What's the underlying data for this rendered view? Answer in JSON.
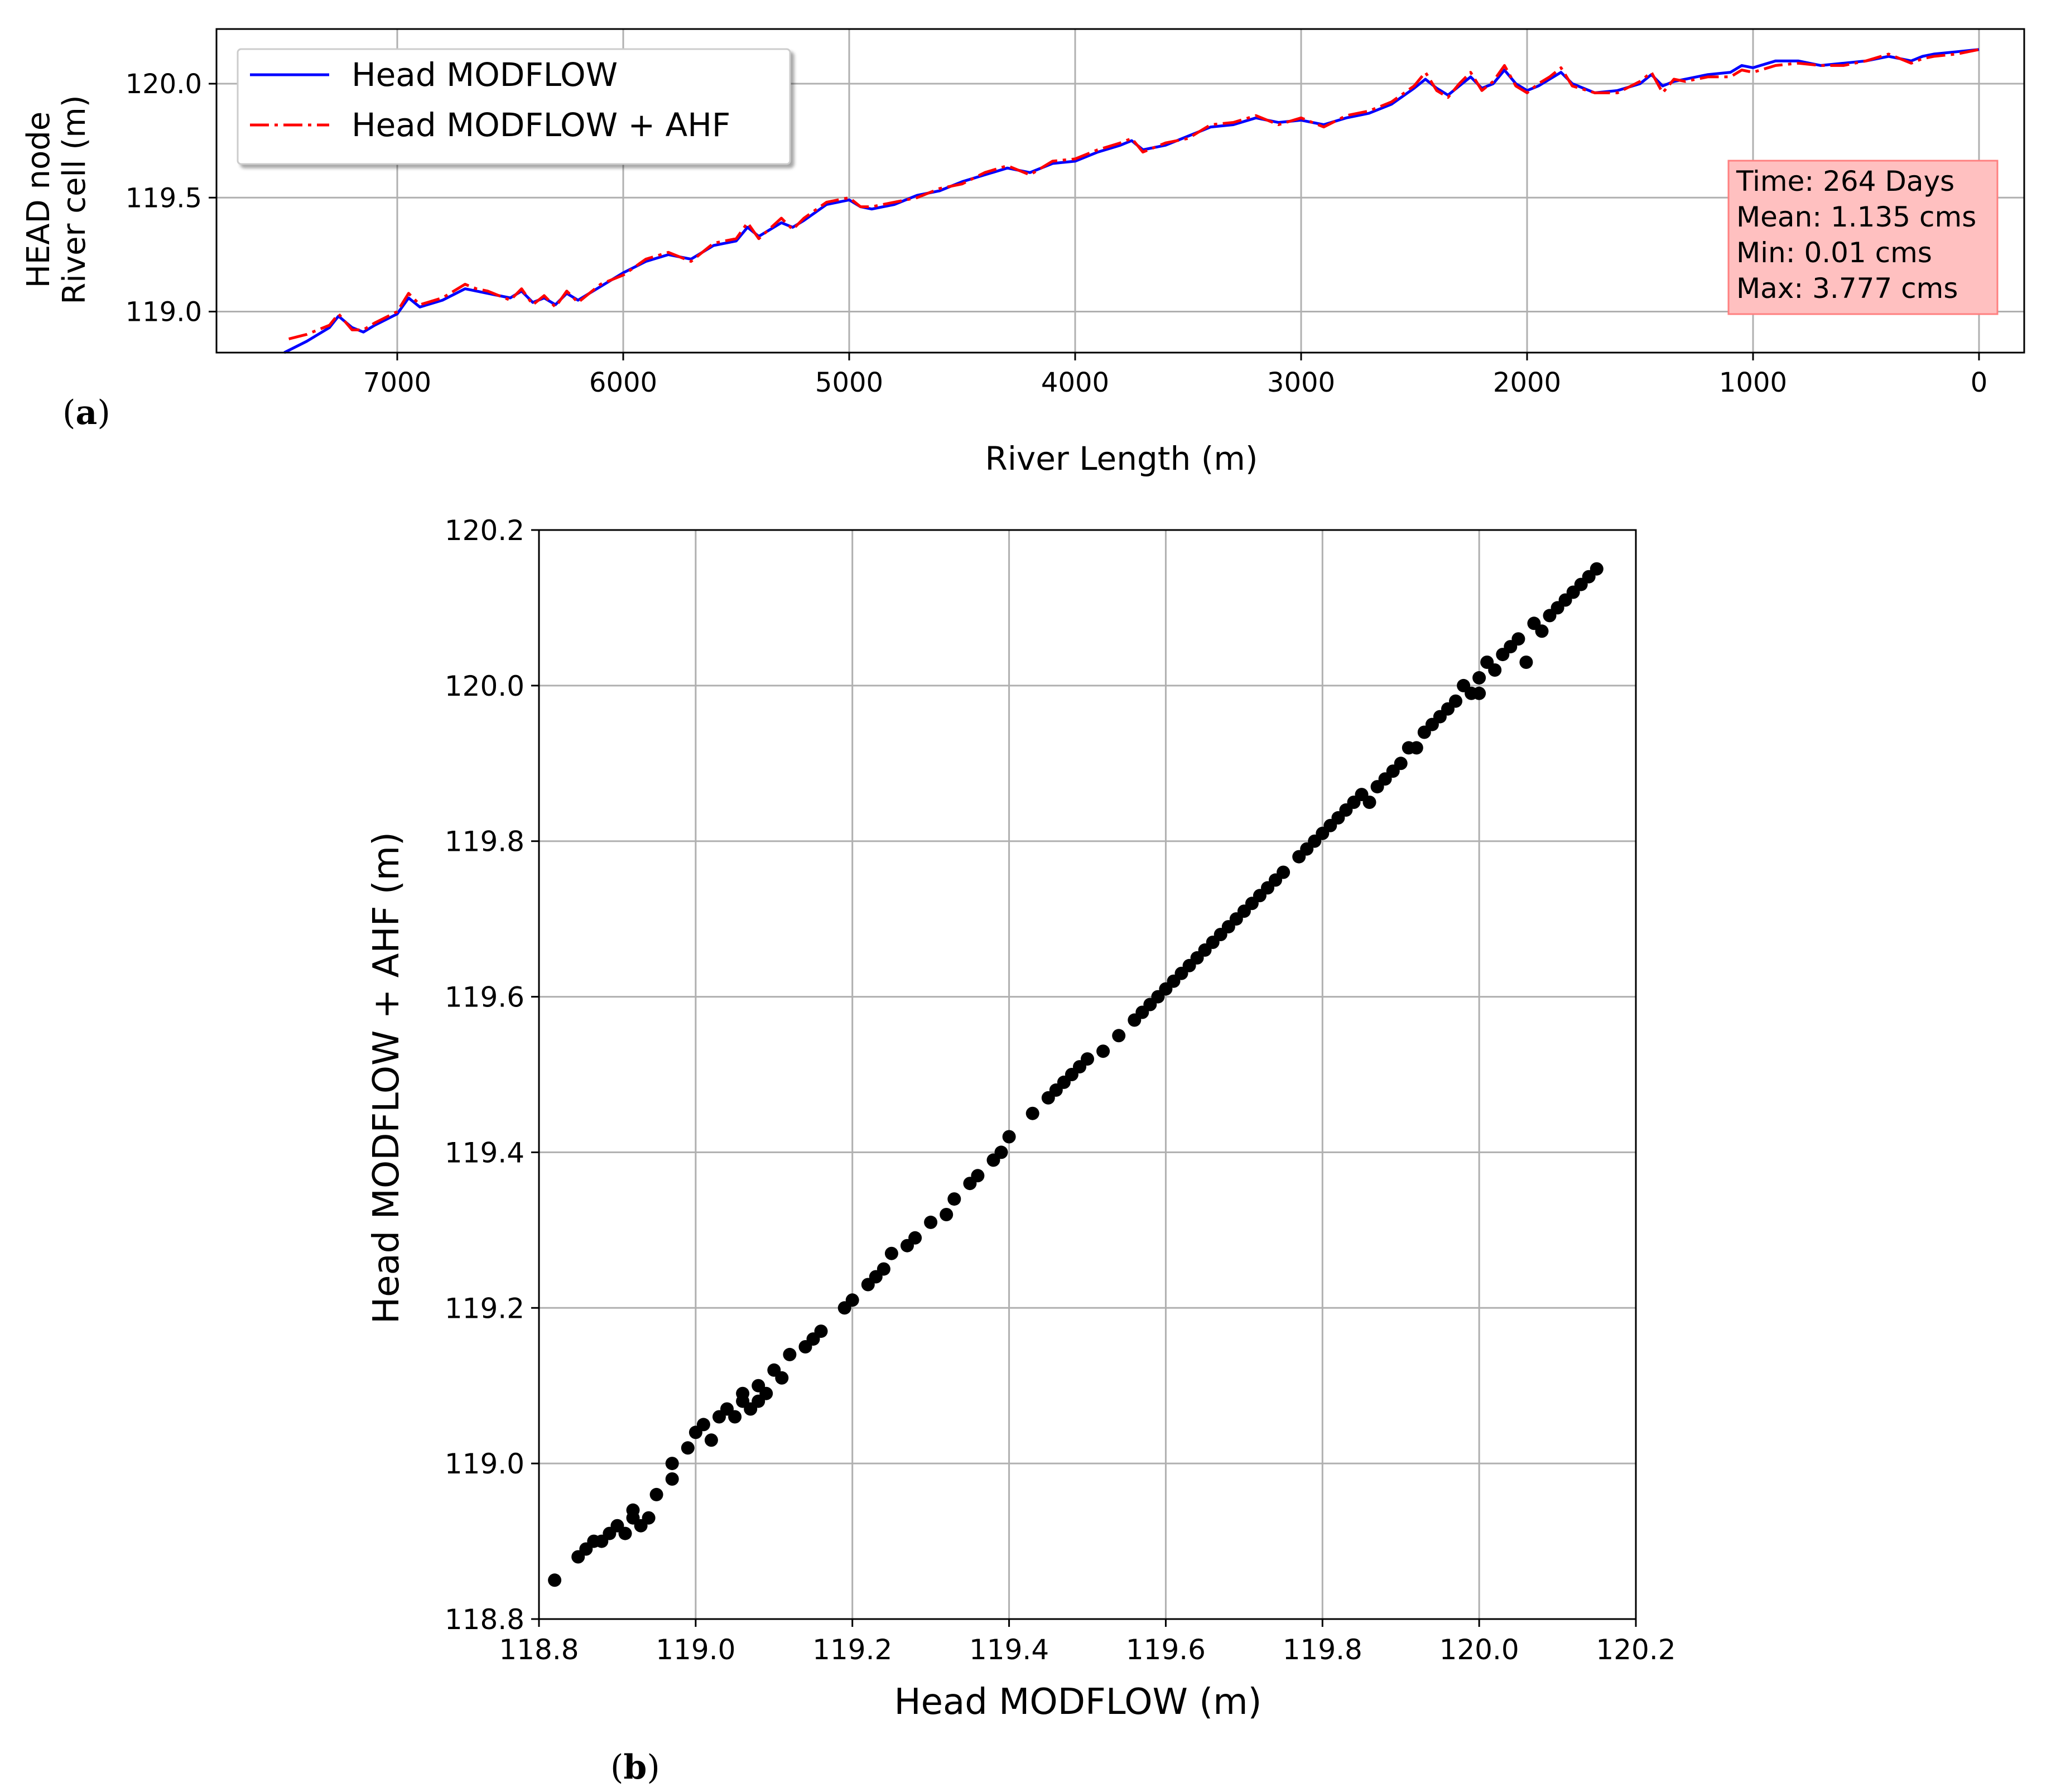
{
  "panel_labels": {
    "a": "(a)",
    "b": "(b)"
  },
  "panel_label_parts": {
    "open": "(",
    "a": "a",
    "b": "b",
    "close": ")"
  },
  "colors": {
    "series_modflow": "#0000ff",
    "series_ahf": "#ff0000",
    "scatter": "#000000",
    "grid": "#b0b0b0",
    "annotation_bg": "#ffc0c0",
    "annotation_border": "#ff8080"
  },
  "chart_data": [
    {
      "id": "a",
      "type": "line",
      "title": "",
      "xlabel": "River Length (m)",
      "ylabel_lines": [
        "HEAD node",
        "River cell (m)"
      ],
      "xlim": [
        7800,
        -200
      ],
      "ylim": [
        118.82,
        120.24
      ],
      "x_ticks": [
        7000,
        6000,
        5000,
        4000,
        3000,
        2000,
        1000,
        0
      ],
      "y_ticks": [
        119.0,
        119.5,
        120.0
      ],
      "y_tick_labels": [
        "119.0",
        "119.5",
        "120.0"
      ],
      "grid": true,
      "legend": {
        "placement": "upper-left",
        "entries": [
          "Head MODFLOW",
          "Head MODFLOW + AHF"
        ]
      },
      "annotation": {
        "placement": "right",
        "lines": [
          "Time: 264 Days",
          "Mean: 1.135 cms",
          "Min: 0.01 cms",
          "Max: 3.777 cms"
        ]
      },
      "series": [
        {
          "name": "Head MODFLOW",
          "style": "solid",
          "x": [
            7500,
            7400,
            7300,
            7260,
            7200,
            7150,
            7100,
            7000,
            6950,
            6900,
            6800,
            6700,
            6650,
            6600,
            6500,
            6450,
            6400,
            6350,
            6300,
            6250,
            6200,
            6100,
            6000,
            5900,
            5800,
            5700,
            5600,
            5500,
            5450,
            5400,
            5300,
            5250,
            5200,
            5100,
            5000,
            4950,
            4900,
            4800,
            4700,
            4600,
            4500,
            4400,
            4300,
            4200,
            4100,
            4000,
            3900,
            3800,
            3750,
            3700,
            3600,
            3500,
            3400,
            3300,
            3200,
            3100,
            3000,
            2900,
            2800,
            2700,
            2600,
            2500,
            2450,
            2400,
            2350,
            2300,
            2250,
            2200,
            2150,
            2100,
            2050,
            2000,
            1950,
            1900,
            1850,
            1800,
            1700,
            1600,
            1500,
            1450,
            1400,
            1350,
            1300,
            1200,
            1100,
            1050,
            1000,
            900,
            800,
            700,
            600,
            500,
            400,
            300,
            250,
            200,
            100,
            0
          ],
          "y": [
            118.82,
            118.87,
            118.93,
            118.98,
            118.93,
            118.91,
            118.94,
            118.99,
            119.06,
            119.02,
            119.05,
            119.1,
            119.09,
            119.08,
            119.06,
            119.09,
            119.04,
            119.06,
            119.03,
            119.08,
            119.05,
            119.11,
            119.17,
            119.22,
            119.25,
            119.23,
            119.29,
            119.31,
            119.37,
            119.33,
            119.39,
            119.37,
            119.4,
            119.47,
            119.49,
            119.46,
            119.45,
            119.47,
            119.51,
            119.53,
            119.57,
            119.6,
            119.63,
            119.61,
            119.65,
            119.66,
            119.7,
            119.73,
            119.75,
            119.71,
            119.73,
            119.77,
            119.81,
            119.82,
            119.85,
            119.83,
            119.84,
            119.82,
            119.85,
            119.87,
            119.91,
            119.98,
            120.02,
            119.98,
            119.95,
            119.99,
            120.03,
            119.98,
            120.0,
            120.06,
            120.0,
            119.97,
            119.99,
            120.02,
            120.05,
            120.0,
            119.96,
            119.97,
            120.0,
            120.04,
            119.99,
            120.01,
            120.02,
            120.04,
            120.05,
            120.08,
            120.07,
            120.1,
            120.1,
            120.08,
            120.09,
            120.1,
            120.12,
            120.1,
            120.12,
            120.13,
            120.14,
            120.15
          ]
        },
        {
          "name": "Head MODFLOW + AHF",
          "style": "dashdot",
          "x": [
            7480,
            7400,
            7300,
            7260,
            7200,
            7150,
            7100,
            7000,
            6950,
            6900,
            6800,
            6700,
            6650,
            6600,
            6500,
            6450,
            6400,
            6350,
            6300,
            6250,
            6200,
            6100,
            6000,
            5900,
            5800,
            5700,
            5600,
            5500,
            5450,
            5400,
            5300,
            5250,
            5200,
            5100,
            5000,
            4950,
            4900,
            4800,
            4700,
            4600,
            4500,
            4400,
            4300,
            4200,
            4100,
            4000,
            3900,
            3800,
            3750,
            3700,
            3600,
            3500,
            3400,
            3300,
            3200,
            3100,
            3000,
            2900,
            2800,
            2700,
            2600,
            2500,
            2450,
            2400,
            2350,
            2300,
            2250,
            2200,
            2150,
            2100,
            2050,
            2000,
            1950,
            1900,
            1850,
            1800,
            1700,
            1600,
            1500,
            1450,
            1400,
            1350,
            1300,
            1200,
            1100,
            1050,
            1000,
            900,
            800,
            700,
            600,
            500,
            400,
            300,
            250,
            200,
            100,
            0
          ],
          "y": [
            118.88,
            118.9,
            118.94,
            118.99,
            118.92,
            118.92,
            118.95,
            119.0,
            119.08,
            119.03,
            119.06,
            119.12,
            119.1,
            119.09,
            119.05,
            119.1,
            119.03,
            119.07,
            119.02,
            119.09,
            119.04,
            119.12,
            119.16,
            119.23,
            119.26,
            119.22,
            119.3,
            119.32,
            119.39,
            119.32,
            119.41,
            119.36,
            119.41,
            119.48,
            119.5,
            119.46,
            119.46,
            119.48,
            119.5,
            119.54,
            119.56,
            119.61,
            119.64,
            119.6,
            119.66,
            119.67,
            119.71,
            119.74,
            119.76,
            119.7,
            119.74,
            119.76,
            119.82,
            119.83,
            119.86,
            119.82,
            119.85,
            119.81,
            119.86,
            119.88,
            119.92,
            119.99,
            120.05,
            119.97,
            119.94,
            120.0,
            120.05,
            119.97,
            120.01,
            120.08,
            119.99,
            119.96,
            120.0,
            120.03,
            120.07,
            119.99,
            119.96,
            119.96,
            120.01,
            120.05,
            119.96,
            120.02,
            120.01,
            120.03,
            120.03,
            120.06,
            120.05,
            120.08,
            120.09,
            120.08,
            120.08,
            120.1,
            120.13,
            120.09,
            120.11,
            120.12,
            120.13,
            120.15
          ]
        }
      ]
    },
    {
      "id": "b",
      "type": "scatter",
      "title": "",
      "xlabel": "Head MODFLOW (m)",
      "ylabel": "Head MODFLOW + AHF (m)",
      "xlim": [
        118.8,
        120.2
      ],
      "ylim": [
        118.8,
        120.2
      ],
      "x_ticks": [
        118.8,
        119.0,
        119.2,
        119.4,
        119.6,
        119.8,
        120.0,
        120.2
      ],
      "y_ticks": [
        118.8,
        119.0,
        119.2,
        119.4,
        119.6,
        119.8,
        120.0,
        120.2
      ],
      "tick_labels": [
        "118.8",
        "119.0",
        "119.2",
        "119.4",
        "119.6",
        "119.8",
        "120.0",
        "120.2"
      ],
      "grid": true,
      "points": {
        "x": [
          118.82,
          118.85,
          118.86,
          118.87,
          118.88,
          118.89,
          118.9,
          118.91,
          118.92,
          118.92,
          118.93,
          118.94,
          118.95,
          118.97,
          118.97,
          118.99,
          119.0,
          119.01,
          119.02,
          119.03,
          119.04,
          119.05,
          119.06,
          119.06,
          119.07,
          119.08,
          119.08,
          119.09,
          119.1,
          119.11,
          119.12,
          119.14,
          119.15,
          119.16,
          119.19,
          119.2,
          119.22,
          119.23,
          119.24,
          119.25,
          119.27,
          119.28,
          119.3,
          119.32,
          119.33,
          119.35,
          119.36,
          119.38,
          119.39,
          119.4,
          119.43,
          119.45,
          119.46,
          119.47,
          119.48,
          119.49,
          119.5,
          119.52,
          119.54,
          119.56,
          119.57,
          119.58,
          119.59,
          119.6,
          119.61,
          119.62,
          119.63,
          119.64,
          119.65,
          119.66,
          119.67,
          119.68,
          119.69,
          119.7,
          119.71,
          119.72,
          119.73,
          119.74,
          119.75,
          119.77,
          119.78,
          119.79,
          119.8,
          119.81,
          119.82,
          119.83,
          119.84,
          119.85,
          119.86,
          119.87,
          119.88,
          119.89,
          119.9,
          119.91,
          119.92,
          119.93,
          119.94,
          119.95,
          119.96,
          119.97,
          119.98,
          119.99,
          120.0,
          120.0,
          120.01,
          120.02,
          120.03,
          120.04,
          120.05,
          120.06,
          120.07,
          120.08,
          120.09,
          120.1,
          120.11,
          120.12,
          120.13,
          120.14,
          120.15
        ],
        "y": [
          118.85,
          118.88,
          118.89,
          118.9,
          118.9,
          118.91,
          118.92,
          118.91,
          118.93,
          118.94,
          118.92,
          118.93,
          118.96,
          118.98,
          119.0,
          119.02,
          119.04,
          119.05,
          119.03,
          119.06,
          119.07,
          119.06,
          119.08,
          119.09,
          119.07,
          119.1,
          119.08,
          119.09,
          119.12,
          119.11,
          119.14,
          119.15,
          119.16,
          119.17,
          119.2,
          119.21,
          119.23,
          119.24,
          119.25,
          119.27,
          119.28,
          119.29,
          119.31,
          119.32,
          119.34,
          119.36,
          119.37,
          119.39,
          119.4,
          119.42,
          119.45,
          119.47,
          119.48,
          119.49,
          119.5,
          119.51,
          119.52,
          119.53,
          119.55,
          119.57,
          119.58,
          119.59,
          119.6,
          119.61,
          119.62,
          119.63,
          119.64,
          119.65,
          119.66,
          119.67,
          119.68,
          119.69,
          119.7,
          119.71,
          119.72,
          119.73,
          119.74,
          119.75,
          119.76,
          119.78,
          119.79,
          119.8,
          119.81,
          119.82,
          119.83,
          119.84,
          119.85,
          119.86,
          119.85,
          119.87,
          119.88,
          119.89,
          119.9,
          119.92,
          119.92,
          119.94,
          119.95,
          119.96,
          119.97,
          119.98,
          120.0,
          119.99,
          120.01,
          119.99,
          120.03,
          120.02,
          120.04,
          120.05,
          120.06,
          120.03,
          120.08,
          120.07,
          120.09,
          120.1,
          120.11,
          120.12,
          120.13,
          120.14,
          120.15
        ]
      }
    }
  ]
}
